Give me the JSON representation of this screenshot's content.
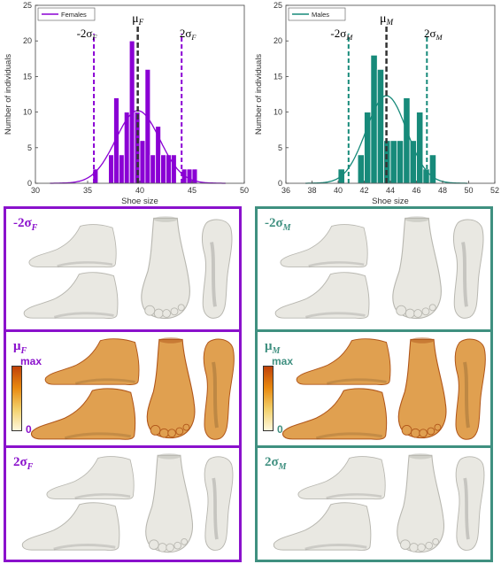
{
  "charts": [
    {
      "title": "",
      "legend": "Females",
      "color": "#8a00d4",
      "xlabel": "Shoe size",
      "ylabel": "Number of individuals",
      "xlim": [
        30,
        50
      ],
      "ylim": [
        0,
        25
      ],
      "xticks": [
        "30",
        "35",
        "40",
        "45",
        "50"
      ],
      "yticks": [
        "0",
        "5",
        "10",
        "15",
        "20",
        "25"
      ],
      "mean_label": "μF",
      "low_label": "-2σF",
      "high_label": "2σF"
    },
    {
      "title": "",
      "legend": "Males",
      "color": "#178a7a",
      "xlabel": "Shoe size",
      "ylabel": "Number of individuals",
      "xlim": [
        36,
        52
      ],
      "ylim": [
        0,
        25
      ],
      "xticks": [
        "36",
        "38",
        "40",
        "42",
        "44",
        "46",
        "48",
        "50",
        "52"
      ],
      "yticks": [
        "0",
        "5",
        "10",
        "15",
        "20",
        "25"
      ],
      "mean_label": "μM",
      "low_label": "-2σM",
      "high_label": "2σM"
    }
  ],
  "chart_data": [
    {
      "type": "bar",
      "series": [
        {
          "name": "Females"
        }
      ],
      "bins": [
        {
          "x0": 35.5,
          "x1": 36.0,
          "value": 2
        },
        {
          "x0": 37.0,
          "x1": 37.5,
          "value": 4
        },
        {
          "x0": 37.5,
          "x1": 38.0,
          "value": 12
        },
        {
          "x0": 38.0,
          "x1": 38.5,
          "value": 4
        },
        {
          "x0": 38.5,
          "x1": 39.0,
          "value": 10
        },
        {
          "x0": 39.0,
          "x1": 39.5,
          "value": 20
        },
        {
          "x0": 39.5,
          "x1": 40.0,
          "value": 10
        },
        {
          "x0": 40.0,
          "x1": 40.5,
          "value": 6
        },
        {
          "x0": 40.5,
          "x1": 41.0,
          "value": 16
        },
        {
          "x0": 41.0,
          "x1": 41.5,
          "value": 4
        },
        {
          "x0": 41.5,
          "x1": 42.0,
          "value": 8
        },
        {
          "x0": 42.0,
          "x1": 42.5,
          "value": 4
        },
        {
          "x0": 42.5,
          "x1": 43.0,
          "value": 4
        },
        {
          "x0": 43.0,
          "x1": 43.5,
          "value": 4
        },
        {
          "x0": 44.0,
          "x1": 44.5,
          "value": 2
        },
        {
          "x0": 44.5,
          "x1": 45.0,
          "value": 2
        },
        {
          "x0": 45.0,
          "x1": 45.5,
          "value": 2
        }
      ],
      "fit_curve": {
        "mean": 39.8,
        "sd": 2.1,
        "peak": 10.2
      },
      "mean": 39.8,
      "minus2sd": 35.6,
      "plus2sd": 44.0,
      "xlim": [
        30,
        50
      ],
      "ylim": [
        0,
        25
      ],
      "legend_position": "top-left",
      "grid": false
    },
    {
      "type": "bar",
      "series": [
        {
          "name": "Males"
        }
      ],
      "bins": [
        {
          "x0": 40.0,
          "x1": 40.5,
          "value": 2
        },
        {
          "x0": 41.5,
          "x1": 42.0,
          "value": 4
        },
        {
          "x0": 42.0,
          "x1": 42.5,
          "value": 10
        },
        {
          "x0": 42.5,
          "x1": 43.0,
          "value": 18
        },
        {
          "x0": 43.0,
          "x1": 43.5,
          "value": 16
        },
        {
          "x0": 43.5,
          "x1": 44.0,
          "value": 6
        },
        {
          "x0": 44.0,
          "x1": 44.5,
          "value": 6
        },
        {
          "x0": 44.5,
          "x1": 45.0,
          "value": 6
        },
        {
          "x0": 45.0,
          "x1": 45.5,
          "value": 12
        },
        {
          "x0": 45.5,
          "x1": 46.0,
          "value": 6
        },
        {
          "x0": 46.0,
          "x1": 46.5,
          "value": 10
        },
        {
          "x0": 46.5,
          "x1": 47.0,
          "value": 2
        },
        {
          "x0": 47.0,
          "x1": 47.5,
          "value": 4
        }
      ],
      "fit_curve": {
        "mean": 43.7,
        "sd": 1.55,
        "peak": 12.3
      },
      "mean": 43.7,
      "minus2sd": 40.8,
      "plus2sd": 46.8,
      "xlim": [
        36,
        52
      ],
      "ylim": [
        0,
        25
      ],
      "legend_position": "top-left",
      "grid": false
    }
  ],
  "panels": {
    "female": {
      "color": "#8a11cc",
      "rows": [
        {
          "label": "-2σF",
          "kind": "gray"
        },
        {
          "label": "μF",
          "kind": "heat",
          "cmax": "max",
          "czero": "0"
        },
        {
          "label": "2σF",
          "kind": "gray"
        }
      ]
    },
    "male": {
      "color": "#3f9080",
      "rows": [
        {
          "label": "-2σM",
          "kind": "gray"
        },
        {
          "label": "μM",
          "kind": "heat",
          "cmax": "max",
          "czero": "0"
        },
        {
          "label": "2σM",
          "kind": "gray"
        }
      ]
    }
  }
}
